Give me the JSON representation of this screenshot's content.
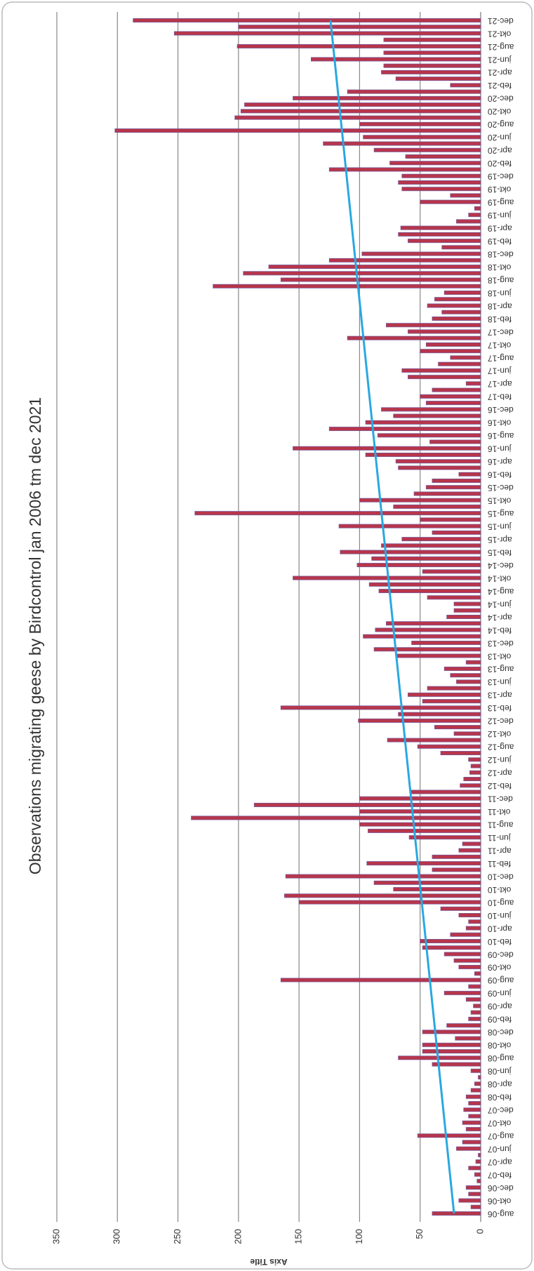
{
  "chart_data": {
    "type": "bar",
    "title": "Observations migrating geese by Birdcontrol jan 2006 tm dec 2021",
    "y_axis_title": "Axis Title",
    "categories": [
      "aug-06",
      null,
      "okt-06",
      null,
      "dec-06",
      null,
      "feb-07",
      null,
      "apr-07",
      null,
      "jun-07",
      null,
      "aug-07",
      null,
      "okt-07",
      null,
      "dec-07",
      null,
      "feb-08",
      null,
      "apr-08",
      null,
      "jun-08",
      null,
      "aug-08",
      null,
      "okt-08",
      null,
      "dec-08",
      null,
      "feb-09",
      null,
      "apr-09",
      null,
      "jun-09",
      null,
      "aug-09",
      null,
      "okt-09",
      null,
      "dec-09",
      null,
      "feb-10",
      null,
      "apr-10",
      null,
      "jun-10",
      null,
      "aug-10",
      null,
      "okt-10",
      null,
      "dec-10",
      null,
      "feb-11",
      null,
      "apr-11",
      null,
      "jun-11",
      null,
      "aug-11",
      null,
      "okt-11",
      null,
      "dec-11",
      null,
      "feb-12",
      null,
      "apr-12",
      null,
      "jun-12",
      null,
      "aug-12",
      null,
      "okt-12",
      null,
      "dec-12",
      null,
      "feb-13",
      null,
      "apr-13",
      null,
      "jun-13",
      null,
      "aug-13",
      null,
      "okt-13",
      null,
      "dec-13",
      null,
      "feb-14",
      null,
      "apr-14",
      null,
      "jun-14",
      null,
      "aug-14",
      null,
      "okt-14",
      null,
      "dec-14",
      null,
      "feb-15",
      null,
      "apr-15",
      null,
      "jun-15",
      null,
      "aug-15",
      null,
      "okt-15",
      null,
      "dec-15",
      null,
      "feb-16",
      null,
      "apr-16",
      null,
      "jun-16",
      null,
      "aug-16",
      null,
      "okt-16",
      null,
      "dec-16",
      null,
      "feb-17",
      null,
      "apr-17",
      null,
      "jun-17",
      null,
      "aug-17",
      null,
      "okt-17",
      null,
      "dec-17",
      null,
      "feb-18",
      null,
      "apr-18",
      null,
      "jun-18",
      null,
      "aug-18",
      null,
      "okt-18",
      null,
      "dec-18",
      null,
      "feb-19",
      null,
      "apr-19",
      null,
      "jun-19",
      null,
      "aug-19",
      null,
      "okt-19",
      null,
      "dec-19",
      null,
      "feb-20",
      null,
      "apr-20",
      null,
      "jun-20",
      null,
      "aug-20",
      null,
      "okt-20",
      null,
      "dec-20",
      null,
      "feb-21",
      null,
      "apr-21",
      null,
      "jun-21",
      null,
      "aug-21",
      null,
      "okt-21",
      null,
      "dec-21"
    ],
    "values": [
      40,
      8,
      18,
      10,
      12,
      3,
      5,
      10,
      4,
      2,
      20,
      15,
      52,
      12,
      15,
      10,
      14,
      10,
      12,
      8,
      5,
      2,
      8,
      40,
      68,
      48,
      48,
      21,
      48,
      28,
      10,
      8,
      6,
      12,
      30,
      10,
      165,
      5,
      18,
      22,
      30,
      48,
      50,
      25,
      12,
      10,
      18,
      33,
      150,
      162,
      72,
      88,
      161,
      40,
      94,
      40,
      18,
      15,
      59,
      93,
      100,
      239,
      100,
      187,
      100,
      58,
      17,
      14,
      9,
      8,
      10,
      33,
      52,
      77,
      22,
      38,
      101,
      68,
      165,
      48,
      60,
      44,
      20,
      25,
      30,
      12,
      70,
      88,
      57,
      97,
      87,
      78,
      28,
      22,
      22,
      44,
      84,
      92,
      155,
      48,
      102,
      90,
      116,
      82,
      65,
      40,
      117,
      50,
      236,
      72,
      100,
      55,
      45,
      40,
      18,
      68,
      70,
      95,
      155,
      42,
      85,
      125,
      95,
      72,
      82,
      45,
      50,
      40,
      12,
      60,
      65,
      35,
      25,
      50,
      45,
      110,
      60,
      78,
      40,
      32,
      44,
      38,
      30,
      221,
      165,
      196,
      175,
      125,
      98,
      32,
      60,
      68,
      66,
      20,
      10,
      5,
      50,
      25,
      65,
      68,
      65,
      125,
      75,
      62,
      88,
      130,
      97,
      302,
      100,
      203,
      198,
      195,
      155,
      110,
      25,
      70,
      82,
      80,
      140,
      80,
      201,
      80,
      253,
      200,
      287
    ],
    "color": "#b8354a",
    "trendline": {
      "color": "#29a8e0",
      "values": [
        22,
        124
      ]
    },
    "ylim": [
      0,
      350
    ],
    "yticks": [
      0,
      50,
      100,
      150,
      200,
      250,
      300,
      350
    ],
    "grid": true
  }
}
